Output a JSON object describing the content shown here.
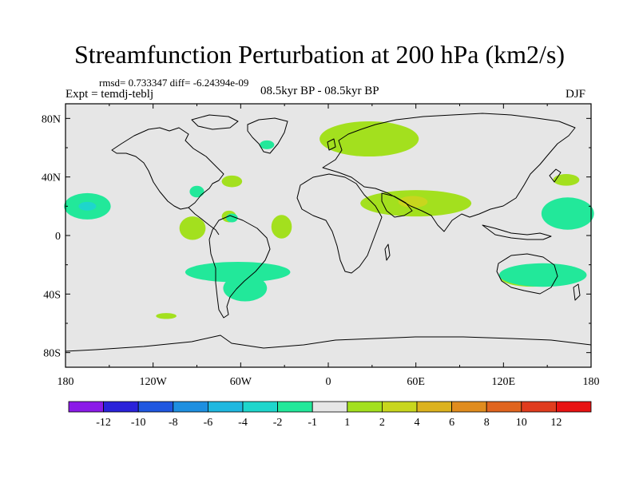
{
  "chart_data": {
    "type": "contour-map",
    "title": "Streamfunction Perturbation at 200 hPa (km2/s)",
    "stats_line": "rmsd= 0.733347 diff= -6.24394e-09",
    "experiment": "Expt = temdj-teblj",
    "subtitle": "08.5kyr BP - 08.5kyr BP",
    "season": "DJF",
    "lon_range": [
      -180,
      180
    ],
    "lat_range": [
      -90,
      90
    ],
    "x_ticks": [
      {
        "value": -180,
        "label": "180"
      },
      {
        "value": -120,
        "label": "120W"
      },
      {
        "value": -60,
        "label": "60W"
      },
      {
        "value": 0,
        "label": "0"
      },
      {
        "value": 60,
        "label": "60E"
      },
      {
        "value": 120,
        "label": "120E"
      },
      {
        "value": 180,
        "label": "180"
      }
    ],
    "y_ticks": [
      {
        "value": 80,
        "label": "80N"
      },
      {
        "value": 40,
        "label": "40N"
      },
      {
        "value": 0,
        "label": "0"
      },
      {
        "value": -40,
        "label": "40S"
      },
      {
        "value": -80,
        "label": "80S"
      }
    ],
    "colorbar": {
      "labels": [
        "-12",
        "-10",
        "-8",
        "-6",
        "-4",
        "-2",
        "-1",
        "1",
        "2",
        "4",
        "6",
        "8",
        "10",
        "12"
      ],
      "colors": [
        "#8b1ae8",
        "#2a22d9",
        "#1f57e0",
        "#1e8fe0",
        "#1fb8e0",
        "#1ed6cc",
        "#22e89a",
        "#e6e6e6",
        "#a3e01e",
        "#c8d61e",
        "#dcb21e",
        "#e08c1e",
        "#e0641e",
        "#e03c1e",
        "#e81212"
      ]
    },
    "anomalies": [
      {
        "region": "North Atlantic / Europe",
        "lon": 28,
        "lat": 66,
        "rx": 34,
        "ry": 12,
        "level": "1 to 2",
        "color": "#a3e01e"
      },
      {
        "region": "Arabia / India",
        "lon": 60,
        "lat": 22,
        "rx": 38,
        "ry": 9,
        "level": "1 to 2",
        "color": "#a3e01e"
      },
      {
        "region": "Arabia core",
        "lon": 58,
        "lat": 23,
        "rx": 10,
        "ry": 4,
        "level": "2 to 4",
        "color": "#c8d61e"
      },
      {
        "region": "Northeast US coast",
        "lon": -66,
        "lat": 37,
        "rx": 7,
        "ry": 4,
        "level": "1 to 2",
        "color": "#a3e01e"
      },
      {
        "region": "Tropical East Pacific",
        "lon": -93,
        "lat": 5,
        "rx": 9,
        "ry": 8,
        "level": "1 to 2",
        "color": "#a3e01e"
      },
      {
        "region": "Caribbean",
        "lon": -68,
        "lat": 13,
        "rx": 5,
        "ry": 4,
        "level": "1 to 2",
        "color": "#a3e01e"
      },
      {
        "region": "Tropical Atlantic",
        "lon": -32,
        "lat": 6,
        "rx": 7,
        "ry": 8,
        "level": "1 to 2",
        "color": "#a3e01e"
      },
      {
        "region": "Australia",
        "lon": 140,
        "lat": -29,
        "rx": 22,
        "ry": 6,
        "level": "1 to 2",
        "color": "#a3e01e"
      },
      {
        "region": "Northwest Pacific",
        "lon": 163,
        "lat": 38,
        "rx": 9,
        "ry": 4,
        "level": "1 to 2",
        "color": "#a3e01e"
      },
      {
        "region": "South Pacific",
        "lon": -111,
        "lat": -55,
        "rx": 7,
        "ry": 2,
        "level": "1 to 2",
        "color": "#a3e01e"
      },
      {
        "region": "Central Pacific",
        "lon": -165,
        "lat": 20,
        "rx": 16,
        "ry": 9,
        "level": "-2 to -1",
        "color": "#22e89a"
      },
      {
        "region": "Central Pacific core",
        "lon": -165,
        "lat": 20,
        "rx": 6,
        "ry": 3,
        "level": "-4 to -2",
        "color": "#1ed6cc"
      },
      {
        "region": "West Pacific",
        "lon": 164,
        "lat": 15,
        "rx": 18,
        "ry": 11,
        "level": "-2 to -1",
        "color": "#22e89a"
      },
      {
        "region": "Gulf of Mexico",
        "lon": -90,
        "lat": 30,
        "rx": 5,
        "ry": 4,
        "level": "-2 to -1",
        "color": "#22e89a"
      },
      {
        "region": "Greenland tip",
        "lon": -42,
        "lat": 62,
        "rx": 5,
        "ry": 3,
        "level": "-2 to -1",
        "color": "#22e89a"
      },
      {
        "region": "Caribbean south",
        "lon": -66,
        "lat": 12,
        "rx": 4,
        "ry": 3,
        "level": "-2 to -1",
        "color": "#22e89a"
      },
      {
        "region": "South America / South Atlantic",
        "lon": -62,
        "lat": -25,
        "rx": 36,
        "ry": 7,
        "level": "-2 to -1",
        "color": "#22e89a"
      },
      {
        "region": "Southern South America",
        "lon": -57,
        "lat": -36,
        "rx": 15,
        "ry": 9,
        "level": "-2 to -1",
        "color": "#22e89a"
      },
      {
        "region": "Southern Indian Ocean",
        "lon": 147,
        "lat": -27,
        "rx": 30,
        "ry": 8,
        "level": "-2 to -1",
        "color": "#22e89a"
      }
    ]
  }
}
